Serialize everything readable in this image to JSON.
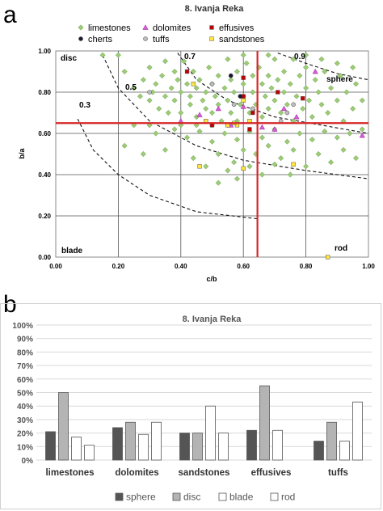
{
  "panels": {
    "a_letter": "a",
    "b_letter": "b"
  },
  "chart_data": [
    {
      "type": "scatter",
      "title": "8. Ivanja Reka",
      "xlabel": "c/b",
      "ylabel": "b/a",
      "xlim": [
        0,
        1
      ],
      "ylim": [
        0,
        1
      ],
      "grid": true,
      "legend_position": "top",
      "x_ticks": [
        "0.00",
        "0.20",
        "0.40",
        "0.60",
        "0.80",
        "1.00"
      ],
      "y_ticks": [
        "0.00",
        "0.20",
        "0.40",
        "0.60",
        "0.80",
        "1.00"
      ],
      "region_labels": {
        "disc": "disc",
        "sphere": "sphere",
        "blade": "blade",
        "rod": "rod"
      },
      "contour_labels": [
        "0.3",
        "0.5",
        "0.7",
        "0.9"
      ],
      "reference_lines": {
        "x": 0.645,
        "y": 0.65,
        "color": "#d62728"
      },
      "series": [
        {
          "name": "limestones",
          "marker": "diamond",
          "color": "#9ccc76",
          "points": [
            [
              0.15,
              0.98
            ],
            [
              0.2,
              0.98
            ],
            [
              0.22,
              0.9
            ],
            [
              0.25,
              0.82
            ],
            [
              0.27,
              0.78
            ],
            [
              0.28,
              0.86
            ],
            [
              0.3,
              0.92
            ],
            [
              0.3,
              0.76
            ],
            [
              0.31,
              0.8
            ],
            [
              0.32,
              0.84
            ],
            [
              0.33,
              0.72
            ],
            [
              0.34,
              0.88
            ],
            [
              0.35,
              0.78
            ],
            [
              0.35,
              0.95
            ],
            [
              0.36,
              0.7
            ],
            [
              0.37,
              0.82
            ],
            [
              0.38,
              0.9
            ],
            [
              0.38,
              0.76
            ],
            [
              0.39,
              0.86
            ],
            [
              0.4,
              0.8
            ],
            [
              0.4,
              0.7
            ],
            [
              0.41,
              0.95
            ],
            [
              0.42,
              0.84
            ],
            [
              0.43,
              0.78
            ],
            [
              0.43,
              0.74
            ],
            [
              0.44,
              0.9
            ],
            [
              0.45,
              0.82
            ],
            [
              0.45,
              0.68
            ],
            [
              0.46,
              0.86
            ],
            [
              0.47,
              0.76
            ],
            [
              0.48,
              0.8
            ],
            [
              0.48,
              0.72
            ],
            [
              0.49,
              0.92
            ],
            [
              0.5,
              0.84
            ],
            [
              0.5,
              0.7
            ],
            [
              0.51,
              0.78
            ],
            [
              0.52,
              0.88
            ],
            [
              0.52,
              0.74
            ],
            [
              0.53,
              0.66
            ],
            [
              0.54,
              0.82
            ],
            [
              0.55,
              0.96
            ],
            [
              0.55,
              0.76
            ],
            [
              0.56,
              0.86
            ],
            [
              0.56,
              0.7
            ],
            [
              0.57,
              0.8
            ],
            [
              0.58,
              0.9
            ],
            [
              0.58,
              0.66
            ],
            [
              0.59,
              0.74
            ],
            [
              0.6,
              0.84
            ],
            [
              0.6,
              0.78
            ],
            [
              0.61,
              0.94
            ],
            [
              0.62,
              0.7
            ],
            [
              0.63,
              0.88
            ],
            [
              0.63,
              0.8
            ],
            [
              0.64,
              0.74
            ],
            [
              0.65,
              0.92
            ],
            [
              0.66,
              0.84
            ],
            [
              0.66,
              0.68
            ],
            [
              0.67,
              0.78
            ],
            [
              0.68,
              0.88
            ],
            [
              0.68,
              0.72
            ],
            [
              0.69,
              0.82
            ],
            [
              0.7,
              0.96
            ],
            [
              0.7,
              0.76
            ],
            [
              0.71,
              0.86
            ],
            [
              0.72,
              0.7
            ],
            [
              0.73,
              0.8
            ],
            [
              0.73,
              0.9
            ],
            [
              0.74,
              0.74
            ],
            [
              0.75,
              0.84
            ],
            [
              0.76,
              0.96
            ],
            [
              0.76,
              0.66
            ],
            [
              0.77,
              0.78
            ],
            [
              0.78,
              0.88
            ],
            [
              0.79,
              0.72
            ],
            [
              0.8,
              0.82
            ],
            [
              0.8,
              0.92
            ],
            [
              0.81,
              0.76
            ],
            [
              0.82,
              0.68
            ],
            [
              0.83,
              0.86
            ],
            [
              0.84,
              0.8
            ],
            [
              0.85,
              0.74
            ],
            [
              0.86,
              0.9
            ],
            [
              0.87,
              0.7
            ],
            [
              0.88,
              0.82
            ],
            [
              0.9,
              0.76
            ],
            [
              0.91,
              0.88
            ],
            [
              0.92,
              0.66
            ],
            [
              0.93,
              0.8
            ],
            [
              0.95,
              0.72
            ],
            [
              0.96,
              0.84
            ],
            [
              0.98,
              0.76
            ],
            [
              0.85,
              0.96
            ],
            [
              0.9,
              0.94
            ],
            [
              0.8,
              0.98
            ],
            [
              0.95,
              0.92
            ],
            [
              0.68,
              0.98
            ],
            [
              0.6,
              0.98
            ],
            [
              0.25,
              0.64
            ],
            [
              0.3,
              0.64
            ],
            [
              0.4,
              0.64
            ],
            [
              0.45,
              0.64
            ],
            [
              0.5,
              0.64
            ],
            [
              0.55,
              0.64
            ],
            [
              0.32,
              0.6
            ],
            [
              0.38,
              0.62
            ],
            [
              0.42,
              0.58
            ],
            [
              0.46,
              0.61
            ],
            [
              0.5,
              0.56
            ],
            [
              0.54,
              0.6
            ],
            [
              0.58,
              0.57
            ],
            [
              0.62,
              0.61
            ],
            [
              0.66,
              0.58
            ],
            [
              0.7,
              0.62
            ],
            [
              0.74,
              0.56
            ],
            [
              0.78,
              0.6
            ],
            [
              0.82,
              0.57
            ],
            [
              0.86,
              0.61
            ],
            [
              0.9,
              0.58
            ],
            [
              0.94,
              0.6
            ],
            [
              0.98,
              0.62
            ],
            [
              0.22,
              0.54
            ],
            [
              0.28,
              0.5
            ],
            [
              0.35,
              0.52
            ],
            [
              0.44,
              0.48
            ],
            [
              0.52,
              0.5
            ],
            [
              0.57,
              0.46
            ],
            [
              0.6,
              0.52
            ],
            [
              0.64,
              0.5
            ],
            [
              0.68,
              0.54
            ],
            [
              0.72,
              0.48
            ],
            [
              0.76,
              0.52
            ],
            [
              0.84,
              0.5
            ],
            [
              0.88,
              0.46
            ],
            [
              0.92,
              0.52
            ],
            [
              0.96,
              0.48
            ],
            [
              0.7,
              0.45
            ],
            [
              0.62,
              0.44
            ],
            [
              0.55,
              0.42
            ],
            [
              0.48,
              0.44
            ],
            [
              0.8,
              0.44
            ],
            [
              0.58,
              0.38
            ],
            [
              0.66,
              0.4
            ],
            [
              0.75,
              0.4
            ],
            [
              0.52,
              0.36
            ]
          ]
        },
        {
          "name": "dolomites",
          "marker": "triangle",
          "color": "#d65bd6",
          "points": [
            [
              0.46,
              0.69
            ],
            [
              0.52,
              0.72
            ],
            [
              0.56,
              0.64
            ],
            [
              0.6,
              0.73
            ],
            [
              0.66,
              0.63
            ],
            [
              0.7,
              0.62
            ],
            [
              0.73,
              0.72
            ],
            [
              0.77,
              0.68
            ],
            [
              0.83,
              0.9
            ],
            [
              0.98,
              0.59
            ],
            [
              0.4,
              0.66
            ]
          ]
        },
        {
          "name": "effusives",
          "marker": "square",
          "color": "#c00000",
          "points": [
            [
              0.42,
              0.9
            ],
            [
              0.5,
              0.64
            ],
            [
              0.6,
              0.87
            ],
            [
              0.62,
              0.62
            ],
            [
              0.63,
              0.7
            ],
            [
              0.71,
              0.8
            ],
            [
              0.79,
              0.77
            ],
            [
              0.6,
              0.78
            ]
          ]
        },
        {
          "name": "cherts",
          "marker": "circle",
          "color": "#1a1a2e",
          "points": [
            [
              0.56,
              0.88
            ],
            [
              0.59,
              0.78
            ]
          ]
        },
        {
          "name": "tuffs",
          "marker": "circle",
          "color": "#bdbdbd",
          "points": [
            [
              0.3,
              0.8
            ],
            [
              0.5,
              0.84
            ],
            [
              0.57,
              0.74
            ],
            [
              0.63,
              0.72
            ],
            [
              0.74,
              0.7
            ],
            [
              0.76,
              0.74
            ],
            [
              0.72,
              0.66
            ],
            [
              0.48,
              0.66
            ]
          ]
        },
        {
          "name": "sandstones",
          "marker": "square",
          "color": "#ffe640",
          "points": [
            [
              0.44,
              0.84
            ],
            [
              0.48,
              0.66
            ],
            [
              0.55,
              0.64
            ],
            [
              0.58,
              0.64
            ],
            [
              0.62,
              0.66
            ],
            [
              0.6,
              0.43
            ],
            [
              0.76,
              0.45
            ],
            [
              0.57,
              0.65
            ],
            [
              0.46,
              0.44
            ],
            [
              0.6,
              0.76
            ],
            [
              0.87,
              0.0
            ]
          ]
        }
      ]
    },
    {
      "type": "bar",
      "title": "8. Ivanja Reka",
      "categories": [
        "limestones",
        "dolomites",
        "sandstones",
        "effusives",
        "tuffs"
      ],
      "ylim": [
        0,
        100
      ],
      "y_ticks": [
        "0%",
        "10%",
        "20%",
        "30%",
        "40%",
        "50%",
        "60%",
        "70%",
        "80%",
        "90%",
        "100%"
      ],
      "grid": true,
      "legend_position": "bottom",
      "series": [
        {
          "name": "sphere",
          "color": "#555555",
          "values": [
            21,
            24,
            20,
            22,
            14
          ]
        },
        {
          "name": "disc",
          "color": "#b4b4b4",
          "values": [
            50,
            28,
            20,
            55,
            28
          ]
        },
        {
          "name": "blade",
          "color": "#ffffff",
          "values": [
            17,
            19,
            40,
            22,
            14
          ]
        },
        {
          "name": "rod",
          "color": "#ffffff",
          "values": [
            11,
            28,
            20,
            0,
            43
          ]
        }
      ]
    }
  ]
}
